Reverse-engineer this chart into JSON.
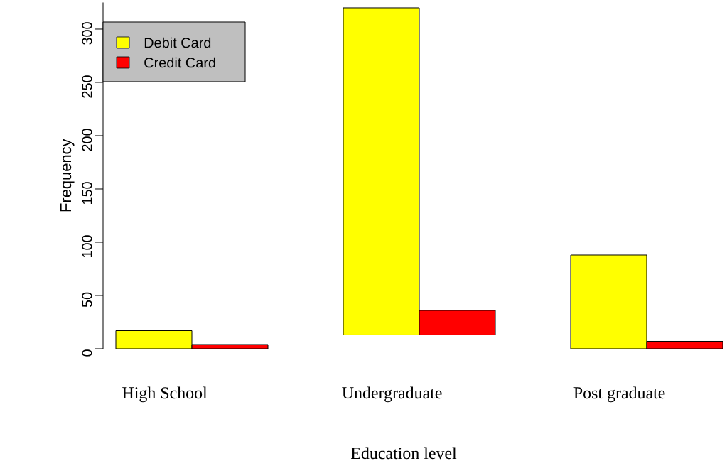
{
  "chart_data": {
    "type": "bar",
    "xlabel": "Education level",
    "ylabel": "Frequency",
    "categories": [
      "High School",
      "Undergraduate",
      "Post graduate"
    ],
    "series": [
      {
        "name": "Debit Card",
        "color": "#ffff00",
        "values": [
          17,
          307,
          88
        ],
        "base": [
          0,
          13,
          0
        ]
      },
      {
        "name": "Credit  Card",
        "color": "#ff0000",
        "values": [
          4,
          23,
          7
        ],
        "base": [
          0,
          13,
          0
        ]
      }
    ],
    "ylim": [
      0,
      325
    ],
    "yticks": [
      0,
      50,
      100,
      150,
      200,
      250,
      300
    ],
    "legend": "top left",
    "grid": false
  }
}
